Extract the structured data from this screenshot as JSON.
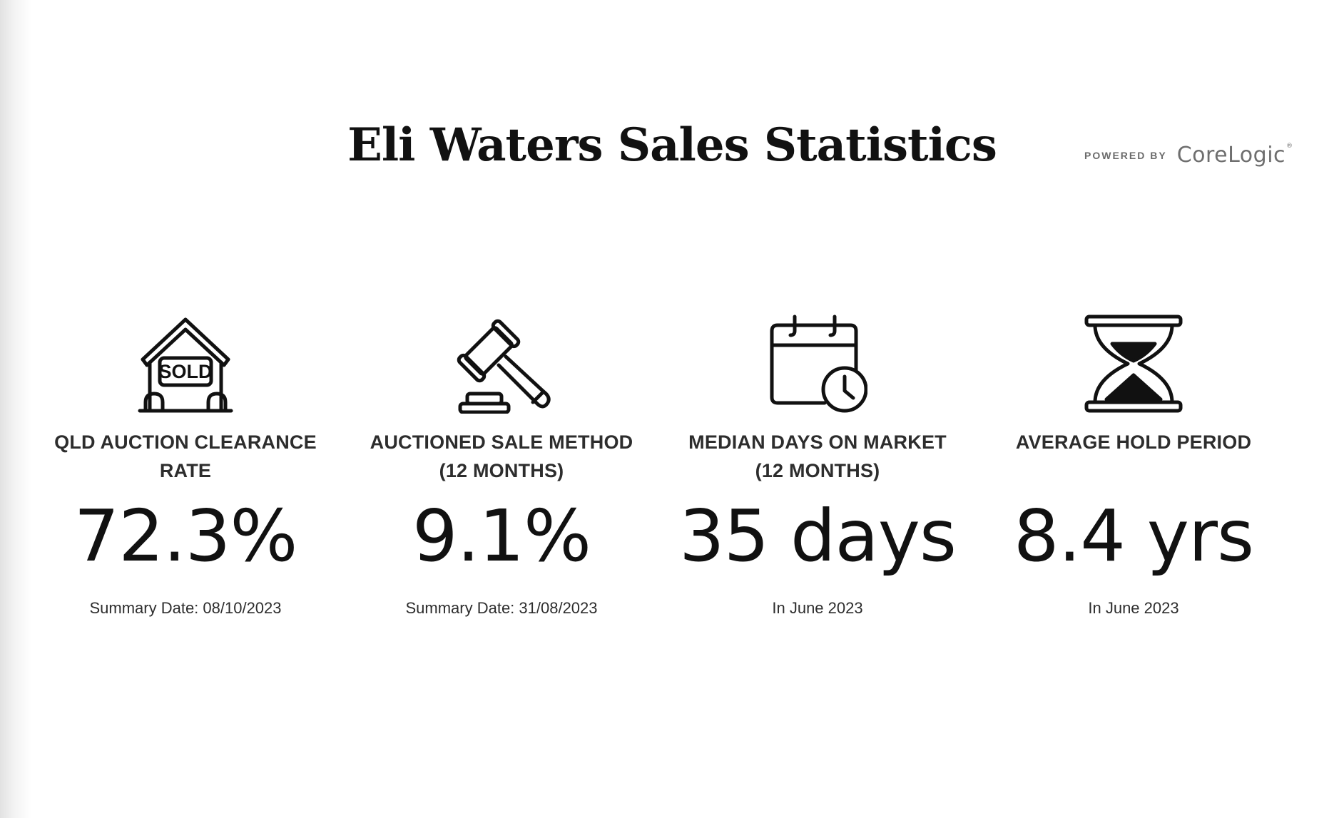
{
  "header": {
    "title": "Eli Waters Sales Statistics",
    "powered_by": "POWERED BY",
    "brand": "CoreLogic",
    "brand_mark": "®"
  },
  "stats": [
    {
      "icon": "sold-house-icon",
      "icon_text": "SOLD",
      "label_line1": "QLD AUCTION CLEARANCE RATE",
      "label_line2": "",
      "value": "72.3%",
      "note": "Summary Date: 08/10/2023"
    },
    {
      "icon": "gavel-icon",
      "label_line1": "AUCTIONED SALE METHOD",
      "label_line2": "(12 MONTHS)",
      "value": "9.1%",
      "note": "Summary Date: 31/08/2023"
    },
    {
      "icon": "calendar-clock-icon",
      "label_line1": "MEDIAN DAYS ON MARKET",
      "label_line2": "(12 MONTHS)",
      "value": "35 days",
      "note": "In June 2023"
    },
    {
      "icon": "hourglass-icon",
      "label_line1": "AVERAGE HOLD PERIOD",
      "label_line2": "",
      "value": "8.4 yrs",
      "note": "In June 2023"
    }
  ]
}
